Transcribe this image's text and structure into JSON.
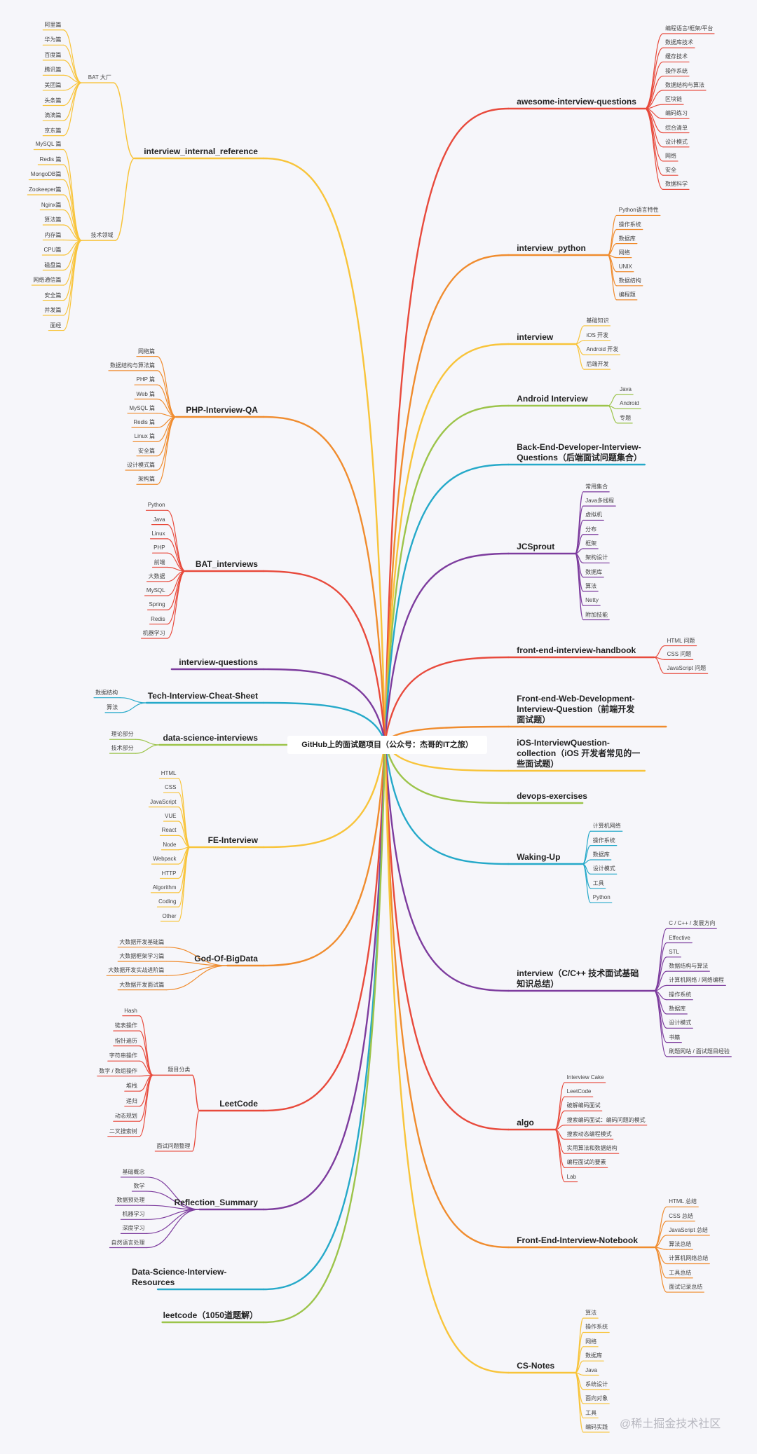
{
  "center": "GitHub上的面试题项目（公众号：杰哥的IT之旅）",
  "right": [
    {
      "label": "awesome-interview-questions",
      "children": [
        "编程语言/框架/平台",
        "数据库技术",
        "缓存技术",
        "操作系统",
        "数据结构与算法",
        "区块链",
        "编码练习",
        "综合清单",
        "设计模式",
        "网络",
        "安全",
        "数据科学"
      ]
    },
    {
      "label": "interview_python",
      "children": [
        "Python语言特性",
        "操作系统",
        "数据库",
        "网络",
        "UNIX",
        "数据结构",
        "编程题"
      ]
    },
    {
      "label": "interview",
      "children": [
        "基础知识",
        "iOS 开发",
        "Android 开发",
        "后端开发"
      ]
    },
    {
      "label": "Android Interview",
      "children": [
        "Java",
        "Android",
        "专题"
      ]
    },
    {
      "label": "Back-End-Developer-Interview-Questions（后端面试问题集合）"
    },
    {
      "label": "JCSprout",
      "children": [
        "常用集合",
        "Java多线程",
        "虚拟机",
        "分布",
        "框架",
        "架构设计",
        "数据库",
        "算法",
        "Netty",
        "附加技能"
      ]
    },
    {
      "label": "front-end-interview-handbook",
      "children": [
        "HTML 问题",
        "CSS 问题",
        "JavaScript 问题"
      ]
    },
    {
      "label": "Front-end-Web-Development-Interview-Question（前端开发面试题）"
    },
    {
      "label": "iOS-InterviewQuestion-collection（iOS 开发者常见的一些面试题）"
    },
    {
      "label": "devops-exercises"
    },
    {
      "label": "Waking-Up",
      "children": [
        "计算机网络",
        "操作系统",
        "数据库",
        "设计模式",
        "工具",
        "Python"
      ]
    },
    {
      "label": "interview（C/C++ 技术面试基础知识总结）",
      "children": [
        "C / C++ / 发展方向",
        "Effective",
        "STL",
        "数据结构与算法",
        "计算机网络 / 网络编程",
        "操作系统",
        "数据库",
        "设计模式",
        "书籍",
        "刷题网站 / 面试题目经验"
      ]
    },
    {
      "label": "algo",
      "children": [
        "Interview Cake",
        "LeetCode",
        "破解编码面试",
        "搜索编码面试：编码问题的模式",
        "搜索动态编程模式",
        "实用算法和数据结构",
        "编程面试的要素",
        "Lab"
      ]
    },
    {
      "label": "Front-End-Interview-Notebook",
      "children": [
        "HTML 总结",
        "CSS 总结",
        "JavaScript 总结",
        "算法总结",
        "计算机网络总结",
        "工具总结",
        "面试记录总结"
      ]
    },
    {
      "label": "CS-Notes",
      "children": [
        "算法",
        "操作系统",
        "网络",
        "数据库",
        "Java",
        "系统设计",
        "面向对象",
        "工具",
        "编码实践"
      ]
    }
  ],
  "left": [
    {
      "label": "interview_internal_reference",
      "children": [
        {
          "label": "BAT 大厂",
          "children": [
            "阿里篇",
            "华为篇",
            "百度篇",
            "腾讯篇",
            "美团篇",
            "头条篇",
            "滴滴篇",
            "京东篇"
          ]
        },
        {
          "label": "技术领域",
          "children": [
            "MySQL 篇",
            "Redis 篇",
            "MongoDB篇",
            "Zookeeper篇",
            "Nginx篇",
            "算法篇",
            "内存篇",
            "CPU篇",
            "磁盘篇",
            "网络通信篇",
            "安全篇",
            "并发篇",
            "面经"
          ]
        }
      ]
    },
    {
      "label": "PHP-Interview-QA",
      "children": [
        "网络篇",
        "数据结构与算法篇",
        "PHP 篇",
        "Web 篇",
        "MySQL 篇",
        "Redis 篇",
        "Linux 篇",
        "安全篇",
        "设计模式篇",
        "架构篇"
      ]
    },
    {
      "label": "BAT_interviews",
      "children": [
        "Python",
        "Java",
        "Linux",
        "PHP",
        "前端",
        "大数据",
        "MySQL",
        "Spring",
        "Redis",
        "机器学习"
      ]
    },
    {
      "label": "interview-questions"
    },
    {
      "label": "Tech-Interview-Cheat-Sheet",
      "children": [
        "数据结构",
        "算法"
      ]
    },
    {
      "label": "data-science-interviews",
      "children": [
        "理论部分",
        "技术部分"
      ]
    },
    {
      "label": "FE-Interview",
      "children": [
        "HTML",
        "CSS",
        "JavaScript",
        "VUE",
        "React",
        "Node",
        "Webpack",
        "HTTP",
        "Algorithm",
        "Coding",
        "Other"
      ]
    },
    {
      "label": "God-Of-BigData",
      "children": [
        "大数据开发基础篇",
        "大数据框架学习篇",
        "大数据开发实战进阶篇",
        "大数据开发面试篇"
      ]
    },
    {
      "label": "LeetCode",
      "children": [
        {
          "label": "题目分类",
          "children": [
            "Hash",
            "链表操作",
            "指针遍历",
            "字符串操作",
            "数字 / 数组操作",
            "堆栈",
            "递归",
            "动态规划",
            "二叉搜索树"
          ]
        },
        "面试问题整理"
      ]
    },
    {
      "label": "Reflection_Summary",
      "children": [
        "基础概念",
        "数学",
        "数据预处理",
        "机器学习",
        "深度学习",
        "自然语言处理"
      ]
    },
    {
      "label": "Data-Science-Interview-Resources"
    },
    {
      "label": "leetcode（1050道题解）"
    }
  ],
  "watermark": "@稀土掘金技术社区"
}
